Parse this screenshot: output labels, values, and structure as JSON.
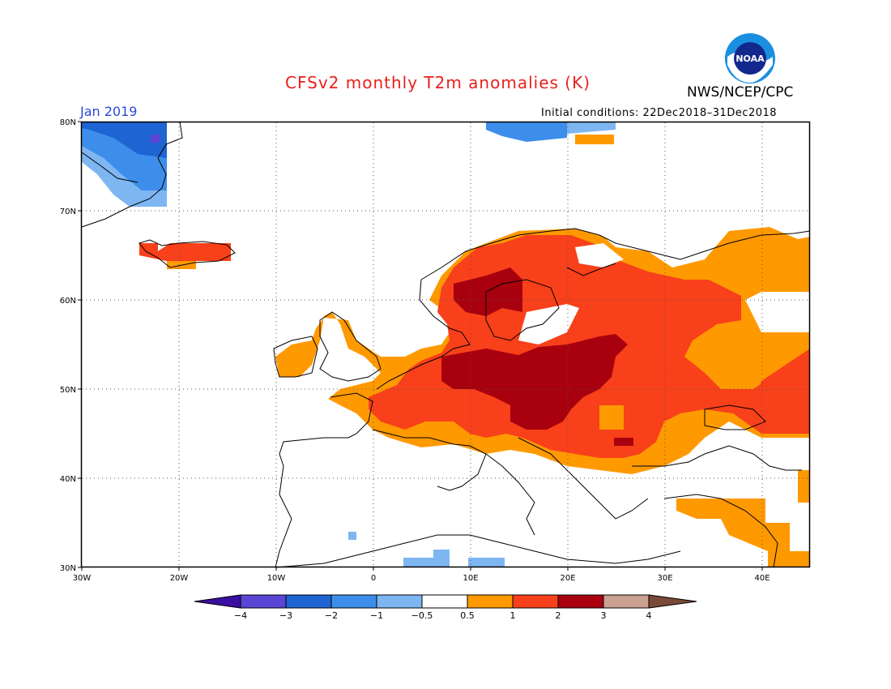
{
  "header": {
    "title": "CFSv2 monthly T2m anomalies (K)",
    "agency": "NWS/NCEP/CPC",
    "month": "Jan 2019",
    "init_conditions": "Initial conditions: 22Dec2018–31Dec2018",
    "logo_text": "NOAA"
  },
  "axes": {
    "lat_labels": [
      "80N",
      "70N",
      "60N",
      "50N",
      "40N",
      "30N"
    ],
    "lon_labels": [
      "30W",
      "20W",
      "10W",
      "0",
      "10E",
      "20E",
      "30E",
      "40E"
    ]
  },
  "colorbar": {
    "labels": [
      "−4",
      "−3",
      "−2",
      "−1",
      "−0.5",
      "0.5",
      "1",
      "2",
      "3",
      "4"
    ],
    "colors": [
      "#3a0ea0",
      "#5a46d4",
      "#1e64d2",
      "#3d8eea",
      "#7eb6f2",
      "#ffffff",
      "#ff9900",
      "#f8401a",
      "#a8000e",
      "#caa092",
      "#7a4a38"
    ]
  },
  "legend_colors": {
    "strong_warm": "#a8000e",
    "warm": "#f8401a",
    "mild_warm": "#ff9900",
    "cool": "#7eb6f2",
    "cold": "#3d8eea",
    "very_cold": "#1e64d2",
    "extreme_cold": "#5a46d4"
  }
}
